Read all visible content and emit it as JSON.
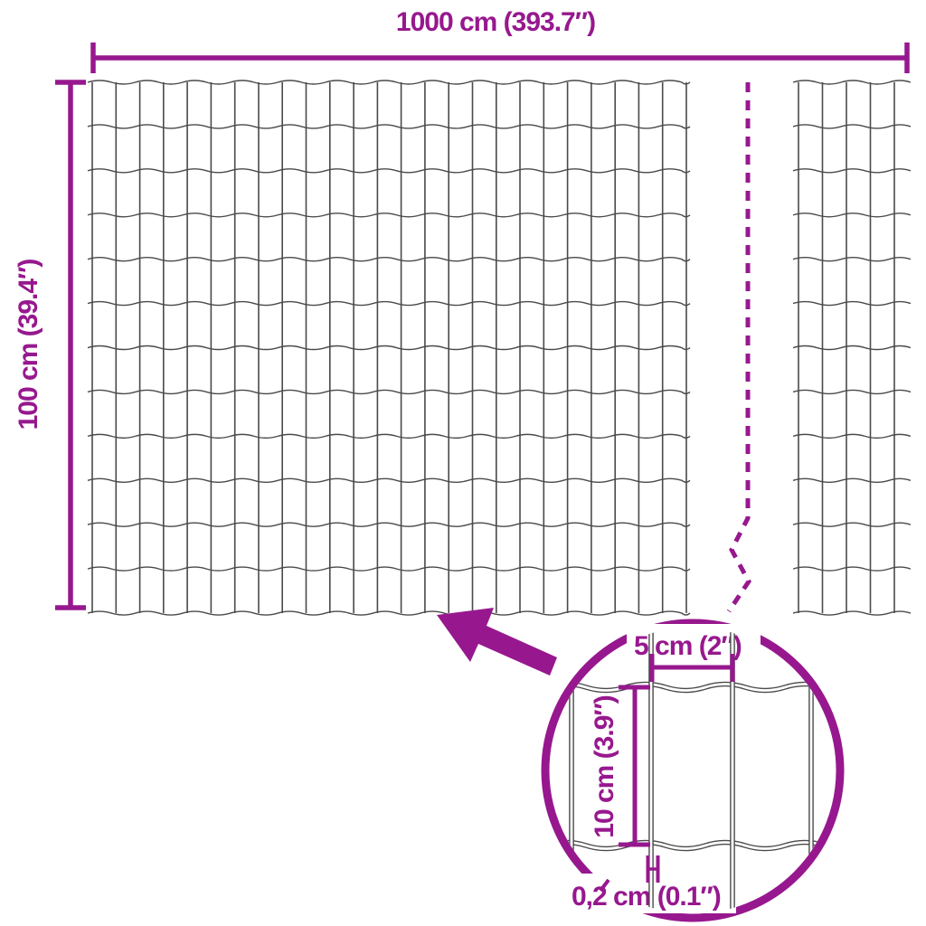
{
  "diagram": {
    "type": "product-dimension-diagram",
    "subject": "garden wire mesh fence"
  },
  "labels": {
    "total_width": "1000 cm (393.7″)",
    "total_height": "100 cm (39.4″)",
    "cell_width": "5 cm (2″)",
    "cell_height": "10 cm (3.9″)",
    "wire_thickness": "0,2 cm (0.1″)"
  },
  "icons": {
    "zoom_arrow": "thick-arrow-pointing-up-left",
    "detail_circle": "magnifier-detail-circle",
    "break_line": "dashed-zigzag-break-line"
  },
  "colors": {
    "accent": "#97188E",
    "wire": "#4A4A4A",
    "background": "#FFFFFF"
  }
}
